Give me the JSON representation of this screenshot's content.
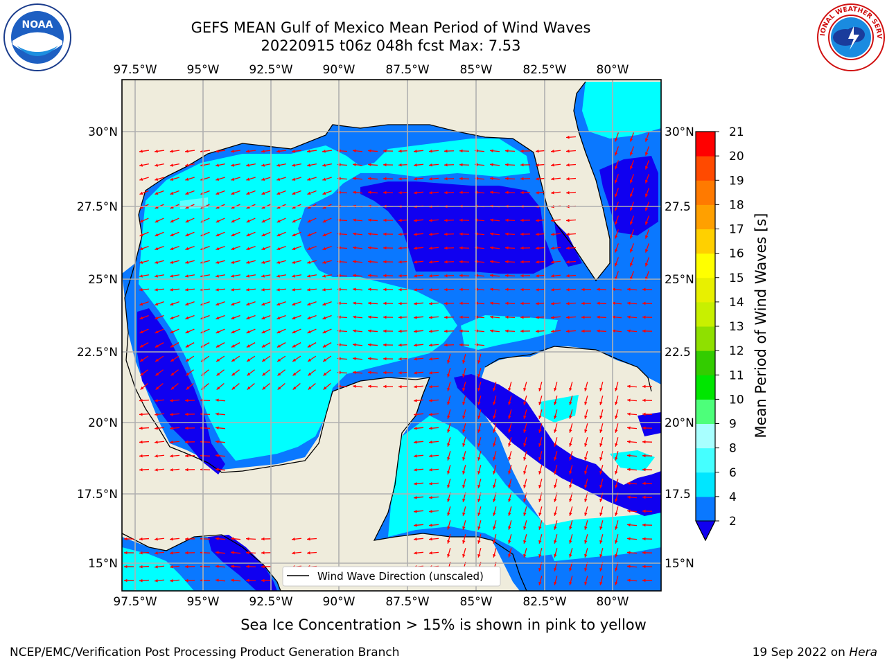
{
  "title_line1": "GEFS MEAN Gulf of Mexico Mean Period of Wind Waves",
  "title_line2": "20220915 t06z 048h fcst   Max: 7.53",
  "lon_ticks": [
    "97.5°W",
    "95°W",
    "92.5°W",
    "90°W",
    "87.5°W",
    "85°W",
    "82.5°W",
    "80°W"
  ],
  "lat_ticks_left": [
    "30°N",
    "27.5°N",
    "25°N",
    "22.5°N",
    "20°N",
    "17.5°N",
    "15°N"
  ],
  "lat_ticks_right": [
    "30°N",
    "27.5",
    "25°N",
    "22.5",
    "20°N",
    "17.5",
    "15°N"
  ],
  "legend_label": "Wind Wave Direction (unscaled)",
  "colorbar": {
    "label": "Mean Period of Wind Waves [s]",
    "ticks": [
      "2",
      "4",
      "6",
      "8",
      "9",
      "10",
      "11",
      "12",
      "13",
      "14",
      "15",
      "16",
      "17",
      "18",
      "19",
      "20",
      "21"
    ],
    "colors": [
      "#0a78ff",
      "#00e6ff",
      "#45ffff",
      "#a8ffff",
      "#4dff7a",
      "#00e600",
      "#33cc00",
      "#8fe000",
      "#c8f000",
      "#e8f000",
      "#ffff00",
      "#ffd000",
      "#ffa000",
      "#ff7a00",
      "#ff4a00",
      "#ff0000"
    ],
    "extend_color": "#1000f0"
  },
  "fill_colors": {
    "land": "#efecdc",
    "level_2_4": "#0a78ff",
    "level_4_6": "#00ffff",
    "level_below_2": "#1000f0",
    "level_6_8": "#45ffff",
    "arrow": "#ff0000"
  },
  "footer_note": "Sea Ice Concentration > 15% is shown in pink to yellow",
  "footer_left": "NCEP/EMC/Verification Post Processing Product Generation Branch",
  "footer_date": "19 Sep 2022 on ",
  "footer_host": "Hera",
  "logos": {
    "left": "NOAA",
    "right": "NATIONAL WEATHER SERVICE"
  }
}
